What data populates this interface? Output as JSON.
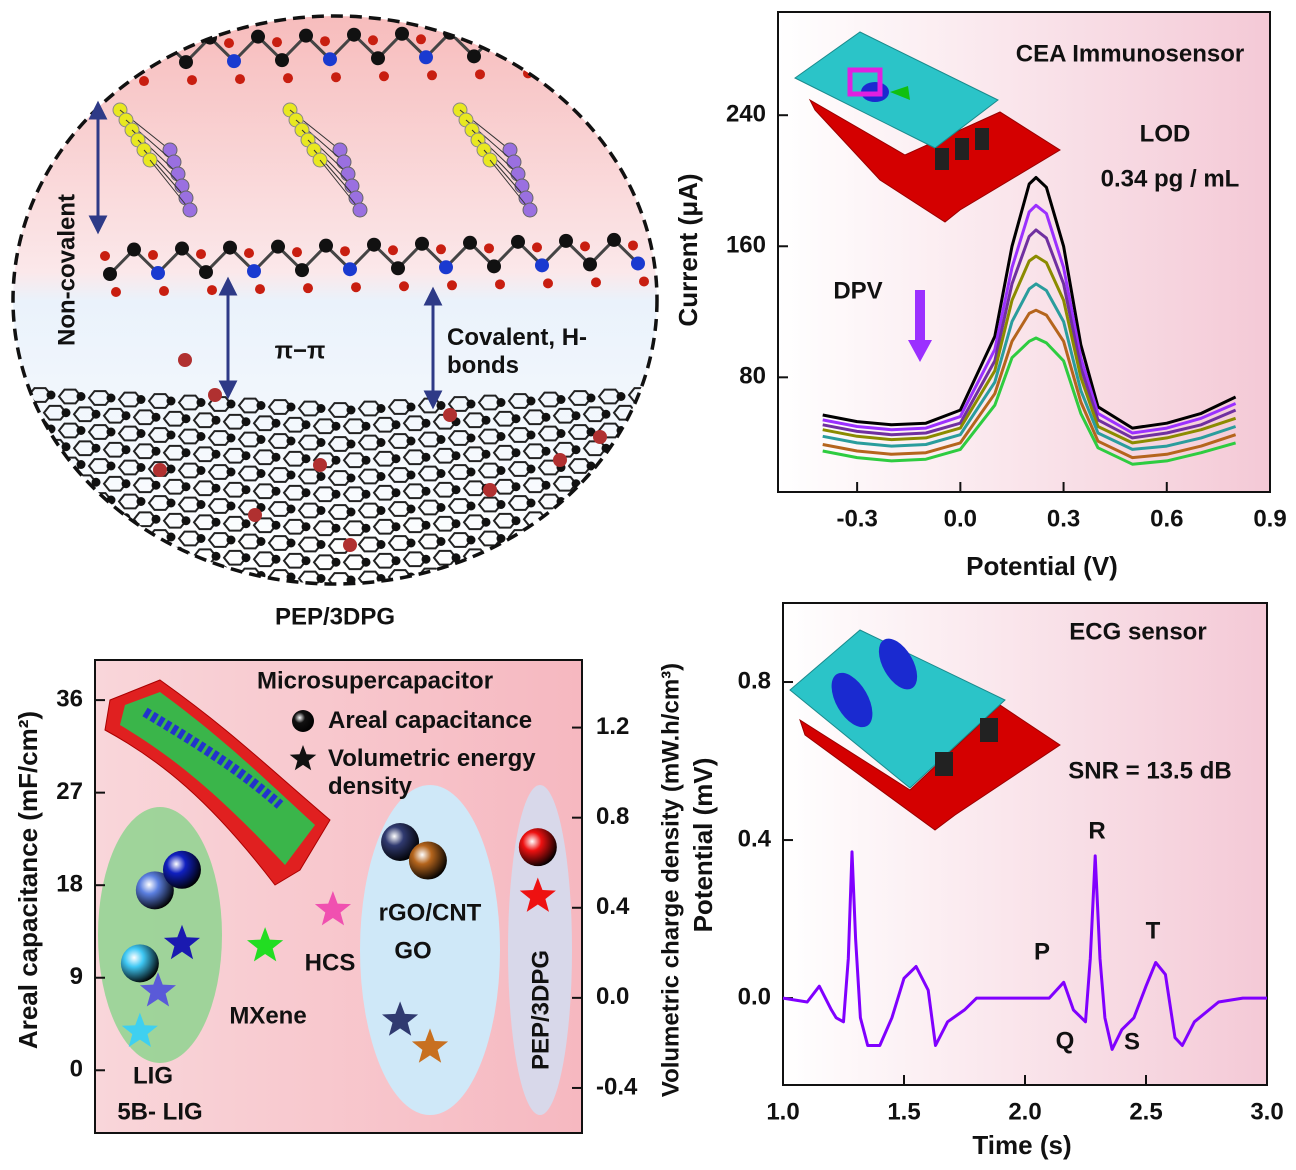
{
  "diagram": {
    "labels": [
      "Non-covalent",
      "π−π",
      "Covalent, H-bonds"
    ],
    "caption": "PEP/3DPG"
  },
  "chart_data": [
    {
      "type": "line",
      "annotations": [
        "CEA Immunosensor",
        "LOD",
        "0.34 pg / mL",
        "DPV"
      ],
      "x_label": "Potential (V)",
      "y_label": "Current (μA)",
      "x": [
        -0.4,
        -0.3,
        -0.2,
        -0.1,
        0,
        0.1,
        0.15,
        0.2,
        0.22,
        0.25,
        0.3,
        0.35,
        0.4,
        0.5,
        0.6,
        0.7,
        0.8
      ],
      "series": [
        {
          "color": "#000000",
          "values": [
            57,
            53,
            51,
            52,
            60,
            105,
            160,
            198,
            202,
            196,
            160,
            100,
            62,
            49,
            52,
            58,
            68
          ]
        },
        {
          "color": "#9b30ff",
          "values": [
            54,
            50,
            48,
            49,
            56,
            97,
            147,
            181,
            185,
            180,
            147,
            92,
            58,
            46,
            49,
            55,
            64
          ]
        },
        {
          "color": "#7030a0",
          "values": [
            51,
            47,
            45,
            46,
            52,
            90,
            137,
            166,
            170,
            165,
            137,
            86,
            54,
            43,
            46,
            51,
            60
          ]
        },
        {
          "color": "#8b8b00",
          "values": [
            48,
            44,
            42,
            43,
            49,
            84,
            127,
            151,
            154,
            150,
            127,
            80,
            50,
            40,
            43,
            48,
            55
          ]
        },
        {
          "color": "#2a9d9d",
          "values": [
            44,
            40,
            38,
            39,
            45,
            77,
            114,
            134,
            137,
            133,
            114,
            72,
            46,
            36,
            38,
            43,
            50
          ]
        },
        {
          "color": "#b5651d",
          "values": [
            39,
            35,
            33,
            34,
            40,
            70,
            102,
            119,
            121,
            118,
            102,
            65,
            41,
            31,
            33,
            38,
            45
          ]
        },
        {
          "color": "#2ecc40",
          "values": [
            35,
            31,
            29,
            30,
            36,
            63,
            92,
            102,
            104,
            101,
            90,
            58,
            37,
            27,
            29,
            34,
            40
          ]
        }
      ],
      "xlim": [
        -0.53,
        0.9
      ],
      "xticks": [
        -0.3,
        {
          "value": 0,
          "label": "0.0"
        },
        0.3,
        0.6,
        0.9
      ],
      "ylim": [
        10,
        303
      ],
      "yticks": [
        80,
        160,
        240
      ]
    },
    {
      "type": "line",
      "annotations": [
        "ECG sensor",
        "SNR = 13.5 dB",
        "P",
        "Q",
        "R",
        "S",
        "T"
      ],
      "x_label": "Time (s)",
      "y_label": "Potential (mV)",
      "x": [
        1.0,
        1.1,
        1.15,
        1.2,
        1.22,
        1.25,
        1.27,
        1.285,
        1.3,
        1.32,
        1.35,
        1.4,
        1.45,
        1.5,
        1.55,
        1.6,
        1.63,
        1.68,
        1.75,
        1.8,
        1.9,
        2.0,
        2.1,
        2.16,
        2.2,
        2.25,
        2.27,
        2.29,
        2.31,
        2.33,
        2.36,
        2.4,
        2.45,
        2.5,
        2.54,
        2.58,
        2.62,
        2.65,
        2.7,
        2.8,
        2.9,
        3.0
      ],
      "series": [
        {
          "color": "#8000ff",
          "values": [
            0.0,
            -0.01,
            0.03,
            -0.03,
            -0.05,
            -0.06,
            0.1,
            0.37,
            0.15,
            -0.05,
            -0.12,
            -0.12,
            -0.05,
            0.05,
            0.08,
            0.02,
            -0.12,
            -0.06,
            -0.03,
            0.0,
            0.0,
            0.0,
            0.0,
            0.04,
            -0.03,
            -0.06,
            0.1,
            0.36,
            0.1,
            -0.05,
            -0.13,
            -0.08,
            -0.05,
            0.03,
            0.09,
            0.06,
            -0.1,
            -0.12,
            -0.06,
            -0.01,
            0.0,
            0.0
          ]
        }
      ],
      "xlim": [
        1.0,
        3.0
      ],
      "xticks": [
        {
          "value": 1,
          "label": "1.0"
        },
        1.5,
        {
          "value": 2,
          "label": "2.0"
        },
        2.5,
        {
          "value": 3,
          "label": "3.0"
        }
      ],
      "ylim": [
        -0.22,
        1.0
      ],
      "yticks": [
        {
          "value": 0,
          "label": "0.0"
        },
        0.4,
        0.8
      ]
    },
    {
      "type": "scatter",
      "annotations": [
        "Microsupercapacitor",
        "LIG",
        "5B- LIG",
        "MXene",
        "HCS",
        "rGO/CNT",
        "GO",
        "PEP/3DPG"
      ],
      "y_label": "Areal capacitance (mF/cm²)",
      "y2_label": "Volumetric charge density (mW.h/cm³)",
      "series": [
        {
          "name": "Areal capacitance",
          "marker": "sphere",
          "legend_color": "#111111",
          "x": [
            1.29,
            1.72,
            2.5,
            8.77,
            9.57,
            12.73
          ],
          "values": [
            10.4,
            17.5,
            19.5,
            22.2,
            20.4,
            21.7
          ],
          "colors": [
            "#3fc8f4",
            "#5b7fe0",
            "#1020c0",
            "#303a70",
            "#b5651d",
            "#ee1111"
          ]
        },
        {
          "name": "Volumetric energy density",
          "marker": "star",
          "axis": "y2",
          "legend_color": "#111111",
          "x": [
            1.29,
            1.81,
            2.5,
            4.89,
            6.84,
            8.77,
            9.63,
            12.73
          ],
          "values": [
            -0.15,
            0.03,
            0.24,
            0.23,
            0.39,
            -0.1,
            -0.22,
            0.45
          ],
          "colors": [
            "#3fd0f0",
            "#5a5ad8",
            "#1a1ab0",
            "#22dd22",
            "#f050b0",
            "#303a70",
            "#c87020",
            "#ee1111"
          ]
        }
      ],
      "xlim": [
        0,
        14
      ],
      "ylim": [
        -6.1,
        39.9
      ],
      "yticks": [
        0,
        9,
        18,
        27,
        36
      ],
      "y2lim": [
        -0.6,
        1.5
      ],
      "y2ticks": [
        -0.4,
        {
          "value": 0,
          "label": "0.0"
        },
        0.4,
        0.8,
        1.2
      ]
    }
  ]
}
